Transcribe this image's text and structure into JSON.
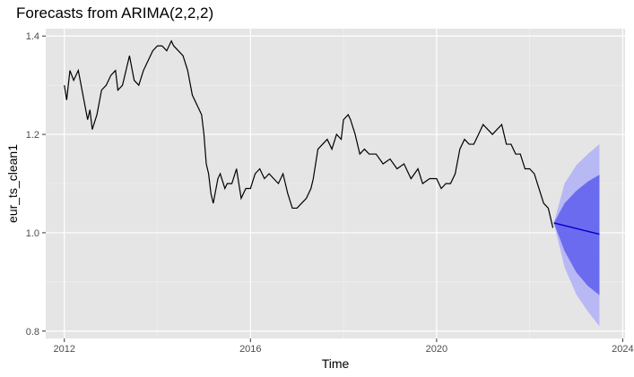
{
  "chart_data": {
    "type": "line",
    "title": "Forecasts from ARIMA(2,2,2)",
    "xlabel": "Time",
    "ylabel": "eur_ts_clean1",
    "xlim": [
      2011.6,
      2024.05
    ],
    "ylim": [
      0.785,
      1.415
    ],
    "xticks": [
      2012,
      2016,
      2020,
      2024
    ],
    "yticks": [
      0.8,
      1.0,
      1.2,
      1.4
    ],
    "xtick_labels": [
      "2012",
      "2016",
      "2020",
      "2024"
    ],
    "ytick_labels": [
      "0.8",
      "1.0",
      "1.2",
      "1.4"
    ],
    "grid": true,
    "panel_color": "#e5e5e5",
    "series": [
      {
        "color": "#000000",
        "x": [
          2012.0,
          2012.05,
          2012.12,
          2012.2,
          2012.3,
          2012.4,
          2012.5,
          2012.55,
          2012.6,
          2012.7,
          2012.8,
          2012.9,
          2013.0,
          2013.1,
          2013.15,
          2013.25,
          2013.4,
          2013.5,
          2013.6,
          2013.7,
          2013.8,
          2013.9,
          2014.0,
          2014.1,
          2014.2,
          2014.3,
          2014.35,
          2014.45,
          2014.55,
          2014.65,
          2014.75,
          2014.85,
          2014.95,
          2015.0,
          2015.05,
          2015.1,
          2015.15,
          2015.2,
          2015.3,
          2015.35,
          2015.45,
          2015.5,
          2015.6,
          2015.7,
          2015.8,
          2015.9,
          2016.0,
          2016.1,
          2016.2,
          2016.3,
          2016.4,
          2016.5,
          2016.6,
          2016.7,
          2016.8,
          2016.9,
          2017.0,
          2017.1,
          2017.2,
          2017.3,
          2017.35,
          2017.45,
          2017.55,
          2017.65,
          2017.75,
          2017.85,
          2017.95,
          2018.0,
          2018.1,
          2018.15,
          2018.25,
          2018.35,
          2018.45,
          2018.55,
          2018.7,
          2018.85,
          2019.0,
          2019.15,
          2019.3,
          2019.45,
          2019.6,
          2019.7,
          2019.85,
          2020.0,
          2020.1,
          2020.2,
          2020.3,
          2020.4,
          2020.5,
          2020.6,
          2020.7,
          2020.8,
          2020.9,
          2021.0,
          2021.1,
          2021.2,
          2021.3,
          2021.4,
          2021.5,
          2021.6,
          2021.7,
          2021.8,
          2021.9,
          2022.0,
          2022.1,
          2022.2,
          2022.3,
          2022.4,
          2022.5
        ],
        "y": [
          1.3,
          1.27,
          1.33,
          1.31,
          1.33,
          1.28,
          1.23,
          1.25,
          1.21,
          1.24,
          1.29,
          1.3,
          1.32,
          1.33,
          1.29,
          1.3,
          1.36,
          1.31,
          1.3,
          1.33,
          1.35,
          1.37,
          1.38,
          1.38,
          1.37,
          1.39,
          1.38,
          1.37,
          1.36,
          1.33,
          1.28,
          1.26,
          1.24,
          1.2,
          1.14,
          1.12,
          1.08,
          1.06,
          1.11,
          1.12,
          1.09,
          1.1,
          1.1,
          1.13,
          1.07,
          1.09,
          1.09,
          1.12,
          1.13,
          1.11,
          1.12,
          1.11,
          1.1,
          1.12,
          1.08,
          1.05,
          1.05,
          1.06,
          1.07,
          1.09,
          1.11,
          1.17,
          1.18,
          1.19,
          1.17,
          1.2,
          1.19,
          1.23,
          1.24,
          1.23,
          1.2,
          1.16,
          1.17,
          1.16,
          1.16,
          1.14,
          1.15,
          1.13,
          1.14,
          1.11,
          1.13,
          1.1,
          1.11,
          1.11,
          1.09,
          1.1,
          1.1,
          1.12,
          1.17,
          1.19,
          1.18,
          1.18,
          1.2,
          1.22,
          1.21,
          1.2,
          1.21,
          1.22,
          1.18,
          1.18,
          1.16,
          1.16,
          1.13,
          1.13,
          1.12,
          1.09,
          1.06,
          1.05,
          1.01
        ]
      },
      {
        "color": "#0000cc",
        "x": [
          2022.52,
          2023.5
        ],
        "y": [
          1.02,
          0.997
        ]
      }
    ],
    "forecast_interval_80": {
      "color": "#6b6bef",
      "x": [
        2022.52,
        2022.75,
        2023.0,
        2023.25,
        2023.5
      ],
      "upper": [
        1.02,
        1.06,
        1.085,
        1.104,
        1.118
      ],
      "lower": [
        1.02,
        0.963,
        0.92,
        0.892,
        0.873
      ]
    },
    "forecast_interval_95": {
      "color": "#b8b8f5",
      "x": [
        2022.52,
        2022.75,
        2023.0,
        2023.25,
        2023.5
      ],
      "upper": [
        1.02,
        1.1,
        1.137,
        1.16,
        1.18
      ],
      "lower": [
        1.02,
        0.93,
        0.875,
        0.84,
        0.81
      ]
    }
  }
}
